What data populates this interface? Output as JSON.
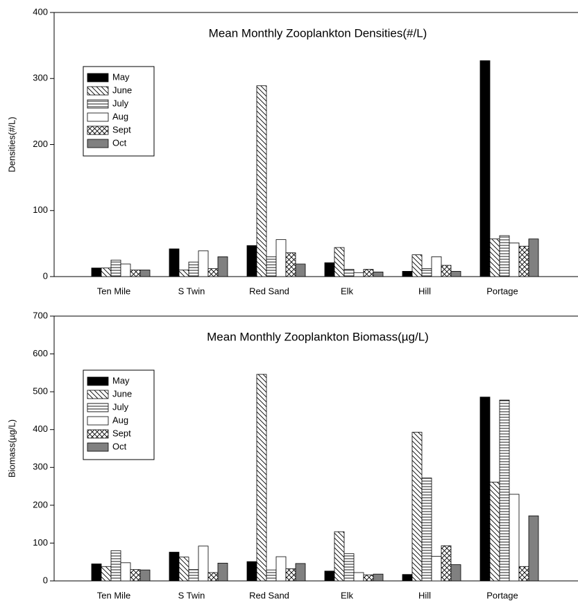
{
  "chart_data": [
    {
      "type": "bar",
      "title": "Mean Monthly Zooplankton Densities(#/L)",
      "y_label": "Densities(#/L)",
      "categories": [
        "Ten Mile",
        "S Twin",
        "Red Sand",
        "Elk",
        "Hill",
        "Portage"
      ],
      "series": [
        {
          "name": "May",
          "color": "#000000",
          "pattern": "solid",
          "values": [
            13,
            42,
            47,
            21,
            8,
            327
          ]
        },
        {
          "name": "June",
          "color": "#ffffff",
          "pattern": "back-diagonal",
          "values": [
            13,
            10,
            289,
            44,
            33,
            57
          ]
        },
        {
          "name": "July",
          "color": "#ffffff",
          "pattern": "horizontal",
          "values": [
            25,
            22,
            30,
            11,
            12,
            62
          ]
        },
        {
          "name": "Aug",
          "color": "#ffffff",
          "pattern": "solid",
          "values": [
            19,
            39,
            56,
            6,
            30,
            51
          ]
        },
        {
          "name": "Sept",
          "color": "#ffffff",
          "pattern": "crosshatch",
          "values": [
            10,
            12,
            36,
            11,
            17,
            46
          ]
        },
        {
          "name": "Oct",
          "color": "#808080",
          "pattern": "solid",
          "values": [
            10,
            30,
            19,
            7,
            8,
            57
          ]
        }
      ],
      "ylim": [
        0,
        400
      ],
      "yticks": [
        0,
        100,
        200,
        300,
        400
      ],
      "legend": "upper left"
    },
    {
      "type": "bar",
      "title": "Mean Monthly Zooplankton Biomass(µg/L)",
      "y_label": "Biomass(µg/L)",
      "categories": [
        "Ten Mile",
        "S Twin",
        "Red Sand",
        "Elk",
        "Hill",
        "Portage"
      ],
      "series": [
        {
          "name": "May",
          "color": "#000000",
          "pattern": "solid",
          "values": [
            45,
            76,
            51,
            26,
            17,
            486
          ]
        },
        {
          "name": "June",
          "color": "#ffffff",
          "pattern": "back-diagonal",
          "values": [
            38,
            63,
            546,
            130,
            393,
            261
          ]
        },
        {
          "name": "July",
          "color": "#ffffff",
          "pattern": "horizontal",
          "values": [
            80,
            30,
            29,
            72,
            272,
            478
          ]
        },
        {
          "name": "Aug",
          "color": "#ffffff",
          "pattern": "solid",
          "values": [
            48,
            92,
            64,
            22,
            65,
            229
          ]
        },
        {
          "name": "Sept",
          "color": "#ffffff",
          "pattern": "crosshatch",
          "values": [
            30,
            22,
            32,
            16,
            93,
            38
          ]
        },
        {
          "name": "Oct",
          "color": "#808080",
          "pattern": "solid",
          "values": [
            29,
            47,
            46,
            18,
            43,
            172
          ]
        }
      ],
      "ylim": [
        0,
        700
      ],
      "yticks": [
        0,
        100,
        200,
        300,
        400,
        500,
        600,
        700
      ],
      "legend": "upper left"
    }
  ]
}
